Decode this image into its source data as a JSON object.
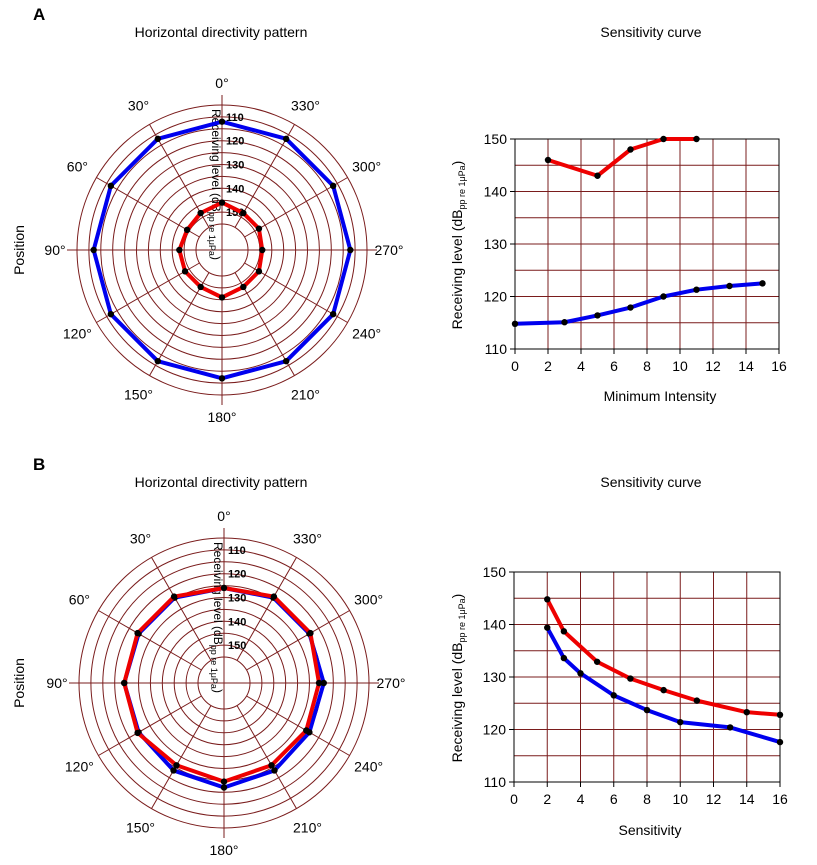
{
  "panels": [
    {
      "letter": "A",
      "polar": {
        "title": "Horizontal directivity pattern",
        "position_label": "Position",
        "radial_axis_label_main": "Receiving level (dB",
        "radial_axis_label_sub": "pp re 1μPa",
        "radial_axis_label_end": ")",
        "ring_labels": [
          "110",
          "120",
          "130",
          "140",
          "150"
        ],
        "angle_labels": [
          "0°",
          "330°",
          "300°",
          "270°",
          "240°",
          "210°",
          "180°",
          "150°",
          "120°",
          "90°",
          "60°",
          "30°"
        ]
      },
      "sens": {
        "title": "Sensitivity curve",
        "xlabel": "Minimum Intensity",
        "ylabel_main": "Receiving level (dB",
        "ylabel_sub": "pp re 1μPa",
        "ylabel_end": ")",
        "xticks": [
          "0",
          "2",
          "4",
          "6",
          "8",
          "10",
          "12",
          "14",
          "16"
        ],
        "yticks": [
          "110",
          "120",
          "130",
          "140",
          "150"
        ]
      }
    },
    {
      "letter": "B",
      "polar": {
        "title": "Horizontal directivity pattern",
        "position_label": "Position",
        "radial_axis_label_main": "Receiving level (dB",
        "radial_axis_label_sub": "pp re 1μPa",
        "radial_axis_label_end": ")",
        "ring_labels": [
          "110",
          "120",
          "130",
          "140",
          "150"
        ],
        "angle_labels": [
          "0°",
          "330°",
          "300°",
          "270°",
          "240°",
          "210°",
          "180°",
          "150°",
          "120°",
          "90°",
          "60°",
          "30°"
        ]
      },
      "sens": {
        "title": "Sensitivity curve",
        "xlabel": "Sensitivity",
        "ylabel_main": "Receiving level (dB",
        "ylabel_sub": "pp re 1μPa",
        "ylabel_end": ")",
        "xticks": [
          "0",
          "2",
          "4",
          "6",
          "8",
          "10",
          "12",
          "14",
          "16"
        ],
        "yticks": [
          "110",
          "120",
          "130",
          "140",
          "150"
        ]
      }
    }
  ],
  "chart_data": [
    {
      "panel": "A",
      "type": "polar",
      "title": "Horizontal directivity pattern",
      "radial_axis": "Receiving level (dBpp re 1μPa)",
      "r_outer": 105,
      "r_inner": 155,
      "r_rings": [
        105,
        110,
        115,
        120,
        125,
        130,
        135,
        140,
        145,
        150
      ],
      "angles_deg": [
        0,
        30,
        60,
        90,
        120,
        150,
        180,
        210,
        240,
        270,
        300,
        330
      ],
      "series": [
        {
          "color": "#0000ee",
          "values": [
            112,
            112,
            112,
            112,
            112,
            112,
            112,
            112,
            112,
            112,
            112,
            112
          ]
        },
        {
          "color": "#ee0000",
          "values": [
            146,
            148,
            149,
            148,
            148,
            148,
            146,
            148,
            148,
            149,
            148,
            148
          ]
        }
      ]
    },
    {
      "panel": "A",
      "type": "line",
      "title": "Sensitivity curve",
      "xlabel": "Minimum Intensity",
      "ylabel": "Receiving level (dBpp re 1μPa)",
      "xlim": [
        0,
        16
      ],
      "ylim": [
        110,
        150
      ],
      "grid": true,
      "series": [
        {
          "color": "#ee0000",
          "x": [
            2,
            5,
            7,
            9,
            11
          ],
          "y": [
            146,
            143,
            148,
            150,
            150
          ]
        },
        {
          "color": "#0000ee",
          "x": [
            0,
            3,
            5,
            7,
            9,
            11,
            13,
            15
          ],
          "y": [
            114.8,
            115.1,
            116.4,
            117.9,
            120,
            121.3,
            122,
            122.5
          ]
        }
      ]
    },
    {
      "panel": "B",
      "type": "polar",
      "title": "Horizontal directivity pattern",
      "radial_axis": "Receiving level (dBpp re 1μPa)",
      "r_outer": 105,
      "r_inner": 155,
      "r_rings": [
        105,
        110,
        115,
        120,
        125,
        130,
        135,
        140,
        145,
        150
      ],
      "angles_deg": [
        0,
        30,
        60,
        90,
        120,
        150,
        180,
        210,
        240,
        270,
        300,
        330
      ],
      "series": [
        {
          "color": "#0000ee",
          "values": [
            126,
            124.5,
            124.5,
            124,
            124.5,
            123.5,
            122,
            123.5,
            124.5,
            124,
            124.5,
            124.5
          ]
        },
        {
          "color": "#ee0000",
          "values": [
            126,
            124,
            124,
            124,
            124,
            126,
            124.5,
            126,
            126,
            126,
            124,
            124
          ]
        }
      ]
    },
    {
      "panel": "B",
      "type": "line",
      "title": "Sensitivity curve",
      "xlabel": "Sensitivity",
      "ylabel": "Receiving level (dBpp re 1μPa)",
      "xlim": [
        0,
        16
      ],
      "ylim": [
        110,
        150
      ],
      "grid": true,
      "series": [
        {
          "color": "#ee0000",
          "x": [
            2,
            3,
            5,
            7,
            9,
            11,
            14,
            16
          ],
          "y": [
            144.8,
            138.7,
            132.9,
            129.7,
            127.5,
            125.5,
            123.3,
            122.8
          ]
        },
        {
          "color": "#0000ee",
          "x": [
            2,
            3,
            4,
            6,
            8,
            10,
            13,
            16
          ],
          "y": [
            139.4,
            133.6,
            130.7,
            126.5,
            123.7,
            121.4,
            120.4,
            117.6
          ]
        }
      ]
    }
  ]
}
